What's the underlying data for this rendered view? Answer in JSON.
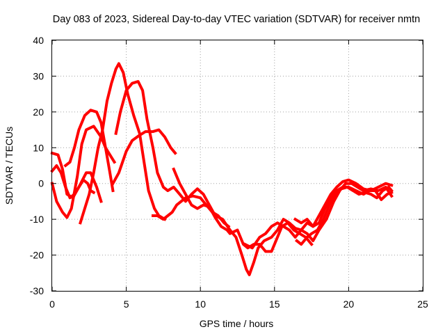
{
  "chart_data": {
    "type": "line",
    "title": "Day 083 of 2023, Sidereal Day-to-day VTEC variation (SDTVAR) for receiver nmtn",
    "xlabel": "GPS time / hours",
    "ylabel": "SDTVAR / TECUs",
    "xlim": [
      0,
      25
    ],
    "ylim": [
      -30,
      40
    ],
    "x_ticks": [
      "0",
      "5",
      "10",
      "15",
      "20",
      "25"
    ],
    "y_ticks": [
      "-30",
      "-20",
      "-10",
      "0",
      "10",
      "20",
      "30",
      "40"
    ],
    "grid": true,
    "series_color": "#ff0000",
    "series": [
      {
        "values": [
          [
            0.0,
            8.5
          ],
          [
            0.4,
            8
          ],
          [
            0.7,
            4
          ],
          [
            1.0,
            -3
          ],
          [
            1.4,
            -4
          ],
          [
            1.8,
            -1
          ],
          [
            2.3,
            3
          ],
          [
            2.6,
            3
          ],
          [
            3.0,
            -1
          ],
          [
            3.3,
            -5
          ]
        ]
      },
      {
        "values": [
          [
            0.0,
            0
          ],
          [
            0.3,
            -5
          ],
          [
            0.7,
            -8
          ],
          [
            1.0,
            -9.5
          ],
          [
            1.3,
            -7
          ],
          [
            1.7,
            2
          ],
          [
            2.0,
            11
          ],
          [
            2.3,
            15
          ],
          [
            2.8,
            16
          ],
          [
            3.3,
            13
          ],
          [
            3.6,
            10
          ],
          [
            3.9,
            8
          ],
          [
            4.2,
            6
          ]
        ]
      },
      {
        "values": [
          [
            0.0,
            3.5
          ],
          [
            0.3,
            5
          ],
          [
            0.6,
            3
          ],
          [
            0.9,
            -1
          ],
          [
            1.2,
            -4
          ],
          [
            1.5,
            -3
          ],
          [
            1.8,
            -1
          ],
          [
            2.1,
            1
          ],
          [
            2.4,
            0
          ],
          [
            2.6,
            -2
          ],
          [
            2.8,
            -2.5
          ]
        ]
      },
      {
        "values": [
          [
            0.9,
            5
          ],
          [
            1.2,
            6
          ],
          [
            1.5,
            10
          ],
          [
            1.8,
            15
          ],
          [
            2.2,
            19
          ],
          [
            2.6,
            20.5
          ],
          [
            3.0,
            20
          ],
          [
            3.3,
            17
          ],
          [
            3.6,
            10
          ],
          [
            3.9,
            3
          ],
          [
            4.1,
            -2
          ]
        ]
      },
      {
        "values": [
          [
            1.9,
            -11
          ],
          [
            2.2,
            -7
          ],
          [
            2.5,
            -3
          ],
          [
            2.8,
            3
          ],
          [
            3.1,
            10
          ],
          [
            3.4,
            15
          ],
          [
            3.7,
            23
          ],
          [
            4.0,
            28
          ],
          [
            4.3,
            32
          ],
          [
            4.5,
            33.5
          ],
          [
            4.8,
            31
          ],
          [
            5.1,
            25
          ],
          [
            5.5,
            19
          ],
          [
            5.9,
            14
          ],
          [
            6.2,
            6
          ],
          [
            6.5,
            -2
          ],
          [
            6.9,
            -7
          ],
          [
            7.2,
            -9
          ],
          [
            7.6,
            -10
          ]
        ]
      },
      {
        "values": [
          [
            4.1,
            0
          ],
          [
            4.5,
            3
          ],
          [
            5.0,
            9
          ],
          [
            5.4,
            12
          ],
          [
            5.9,
            13.5
          ],
          [
            6.3,
            14.5
          ],
          [
            6.8,
            14.5
          ],
          [
            7.2,
            15
          ],
          [
            7.6,
            13
          ],
          [
            8.0,
            10
          ],
          [
            8.3,
            8.5
          ]
        ]
      },
      {
        "values": [
          [
            4.3,
            14
          ],
          [
            4.6,
            20
          ],
          [
            5.0,
            26
          ],
          [
            5.4,
            28
          ],
          [
            5.8,
            28.5
          ],
          [
            6.1,
            26
          ],
          [
            6.4,
            18
          ],
          [
            6.8,
            10
          ],
          [
            7.1,
            3
          ],
          [
            7.5,
            -1
          ],
          [
            7.8,
            -2
          ],
          [
            8.2,
            -1
          ],
          [
            8.6,
            -3
          ],
          [
            9.0,
            -5
          ],
          [
            9.4,
            -3
          ],
          [
            9.8,
            -1.5
          ],
          [
            10.2,
            -3
          ],
          [
            10.6,
            -6
          ],
          [
            11.0,
            -9
          ],
          [
            11.5,
            -10
          ],
          [
            12.0,
            -13
          ]
        ]
      },
      {
        "values": [
          [
            6.8,
            -9
          ],
          [
            7.1,
            -9
          ],
          [
            7.5,
            -10
          ],
          [
            7.8,
            -9
          ],
          [
            8.1,
            -8
          ],
          [
            8.4,
            -6
          ],
          [
            8.7,
            -5
          ],
          [
            9.0,
            -4
          ],
          [
            9.5,
            -3.5
          ],
          [
            10.0,
            -4
          ],
          [
            10.4,
            -6
          ],
          [
            10.8,
            -8
          ],
          [
            11.2,
            -9
          ],
          [
            11.6,
            -11
          ],
          [
            11.9,
            -12
          ]
        ]
      },
      {
        "values": [
          [
            8.2,
            4
          ],
          [
            8.6,
            0
          ],
          [
            9.0,
            -3
          ],
          [
            9.4,
            -6
          ],
          [
            9.8,
            -7
          ],
          [
            10.2,
            -6
          ],
          [
            10.6,
            -6.5
          ],
          [
            11.0,
            -9.5
          ],
          [
            11.4,
            -12
          ],
          [
            11.8,
            -13
          ],
          [
            12.0,
            -14
          ],
          [
            12.5,
            -13
          ],
          [
            12.9,
            -17
          ],
          [
            13.2,
            -18
          ],
          [
            13.6,
            -17
          ],
          [
            14.0,
            -17
          ],
          [
            14.4,
            -19
          ],
          [
            14.8,
            -19
          ],
          [
            15.1,
            -16
          ],
          [
            15.5,
            -12
          ],
          [
            15.9,
            -11
          ],
          [
            16.3,
            -13
          ],
          [
            16.7,
            -14
          ],
          [
            17.1,
            -15
          ],
          [
            17.5,
            -17
          ]
        ]
      },
      {
        "values": [
          [
            12.0,
            -13
          ],
          [
            12.4,
            -15
          ],
          [
            12.8,
            -20
          ],
          [
            13.1,
            -24
          ],
          [
            13.3,
            -25.5
          ],
          [
            13.6,
            -22
          ],
          [
            13.9,
            -18
          ],
          [
            14.3,
            -16
          ],
          [
            14.8,
            -15
          ],
          [
            15.2,
            -13
          ],
          [
            15.6,
            -10
          ],
          [
            16.0,
            -11
          ],
          [
            16.4,
            -12.5
          ],
          [
            16.8,
            -13
          ],
          [
            17.2,
            -14
          ],
          [
            17.6,
            -16
          ],
          [
            18.0,
            -13
          ],
          [
            18.5,
            -10
          ],
          [
            19.0,
            -5
          ],
          [
            19.4,
            -2
          ],
          [
            19.8,
            0
          ],
          [
            20.2,
            0
          ],
          [
            20.6,
            -1
          ],
          [
            21.0,
            -2
          ],
          [
            21.5,
            -1.5
          ],
          [
            22.0,
            -2
          ],
          [
            22.5,
            -1
          ],
          [
            22.9,
            -3.5
          ]
        ]
      },
      {
        "values": [
          [
            13.0,
            -17
          ],
          [
            13.5,
            -18
          ],
          [
            14.0,
            -15
          ],
          [
            14.4,
            -14
          ],
          [
            14.8,
            -12
          ],
          [
            15.2,
            -11
          ],
          [
            15.6,
            -12
          ],
          [
            16.0,
            -13
          ],
          [
            16.4,
            -15
          ],
          [
            16.8,
            -13
          ],
          [
            17.2,
            -11
          ],
          [
            17.6,
            -12
          ],
          [
            18.0,
            -9
          ],
          [
            18.4,
            -6
          ],
          [
            18.8,
            -3
          ],
          [
            19.2,
            -1
          ],
          [
            19.6,
            0.5
          ],
          [
            20.0,
            1
          ],
          [
            20.5,
            0
          ],
          [
            21.0,
            -1.5
          ],
          [
            21.5,
            -2
          ],
          [
            22.0,
            -1
          ],
          [
            22.5,
            0
          ],
          [
            22.9,
            -0.5
          ]
        ]
      },
      {
        "values": [
          [
            16.4,
            -10
          ],
          [
            16.8,
            -11
          ],
          [
            17.2,
            -10
          ],
          [
            17.6,
            -12
          ],
          [
            18.0,
            -11
          ],
          [
            18.4,
            -7
          ],
          [
            18.8,
            -4
          ],
          [
            19.2,
            -2
          ],
          [
            19.6,
            -1
          ],
          [
            20.0,
            -1
          ],
          [
            20.5,
            -2
          ],
          [
            21.0,
            -3
          ],
          [
            21.4,
            -2
          ],
          [
            21.8,
            -2
          ],
          [
            22.2,
            -4.5
          ],
          [
            22.6,
            -3
          ],
          [
            22.9,
            -2.5
          ]
        ]
      },
      {
        "values": [
          [
            16.5,
            -16
          ],
          [
            16.8,
            -17
          ],
          [
            17.2,
            -15
          ],
          [
            17.5,
            -14
          ],
          [
            17.9,
            -13
          ],
          [
            18.3,
            -10
          ],
          [
            18.7,
            -6
          ],
          [
            19.1,
            -3
          ],
          [
            19.5,
            -1.5
          ],
          [
            19.9,
            -1
          ],
          [
            20.3,
            -2
          ],
          [
            20.7,
            -3
          ],
          [
            21.1,
            -2.5
          ],
          [
            21.5,
            -3
          ],
          [
            21.9,
            -4
          ],
          [
            22.3,
            -2
          ],
          [
            22.7,
            -1
          ],
          [
            22.9,
            -2
          ]
        ]
      }
    ]
  }
}
